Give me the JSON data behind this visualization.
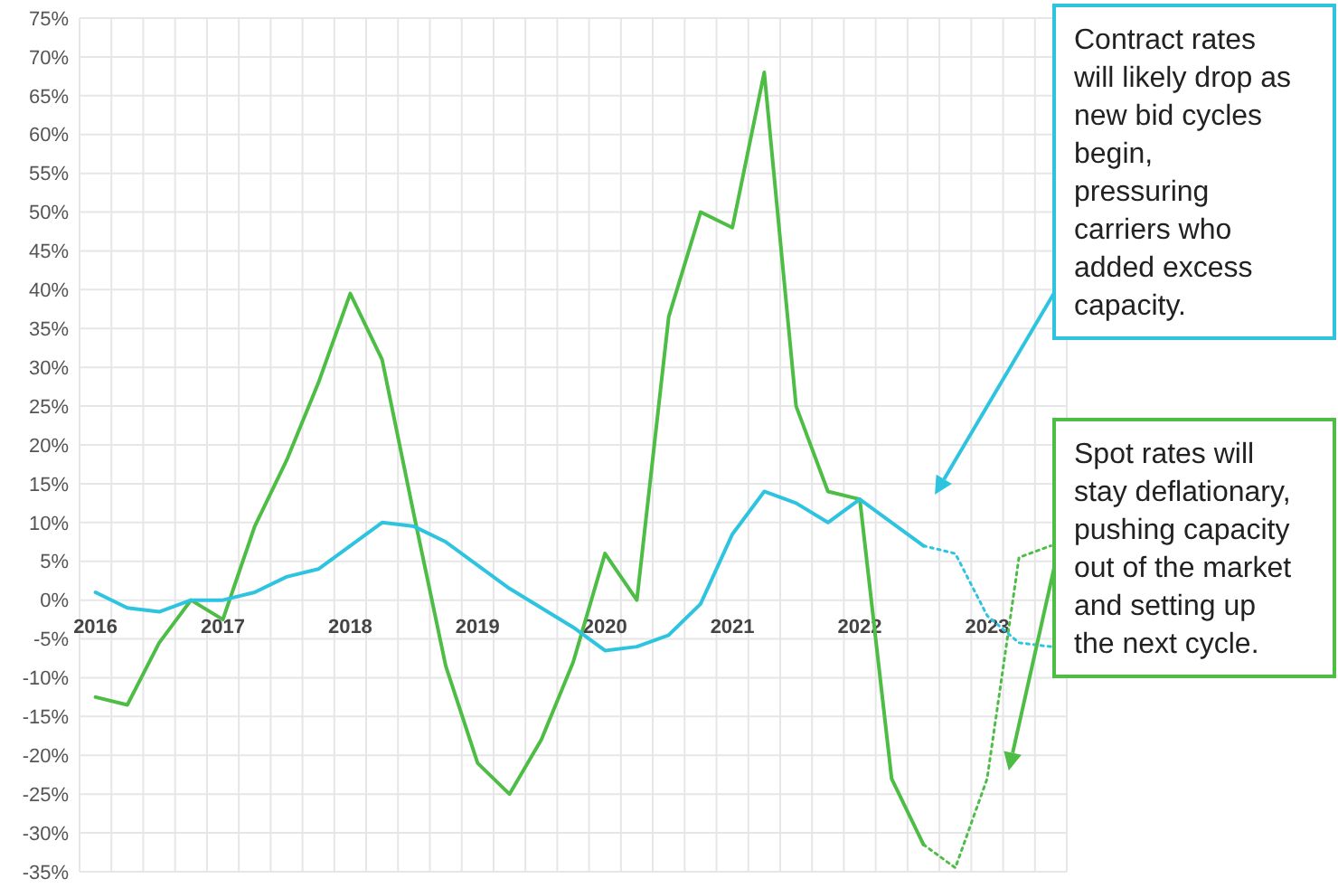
{
  "chart_data": {
    "type": "line",
    "xlim": [
      2015.875,
      2023.625
    ],
    "xticks": [
      2016,
      2017,
      2018,
      2019,
      2020,
      2021,
      2022,
      2023,
      {
        "value": 2015.875,
        "label": null
      },
      {
        "value": 2016.125,
        "label": null
      },
      {
        "value": 2016.375,
        "label": null
      },
      {
        "value": 2016.625,
        "label": null
      },
      {
        "value": 2016.875,
        "label": null
      },
      {
        "value": 2017.125,
        "label": null
      },
      {
        "value": 2017.375,
        "label": null
      },
      {
        "value": 2017.625,
        "label": null
      },
      {
        "value": 2017.875,
        "label": null
      },
      {
        "value": 2018.125,
        "label": null
      },
      {
        "value": 2018.375,
        "label": null
      },
      {
        "value": 2018.625,
        "label": null
      },
      {
        "value": 2018.875,
        "label": null
      },
      {
        "value": 2019.125,
        "label": null
      },
      {
        "value": 2019.375,
        "label": null
      },
      {
        "value": 2019.625,
        "label": null
      },
      {
        "value": 2019.875,
        "label": null
      },
      {
        "value": 2020.125,
        "label": null
      },
      {
        "value": 2020.375,
        "label": null
      },
      {
        "value": 2020.625,
        "label": null
      },
      {
        "value": 2020.875,
        "label": null
      },
      {
        "value": 2021.125,
        "label": null
      },
      {
        "value": 2021.375,
        "label": null
      },
      {
        "value": 2021.625,
        "label": null
      },
      {
        "value": 2021.875,
        "label": null
      },
      {
        "value": 2022.125,
        "label": null
      },
      {
        "value": 2022.375,
        "label": null
      },
      {
        "value": 2022.625,
        "label": null
      },
      {
        "value": 2022.875,
        "label": null
      },
      {
        "value": 2023.125,
        "label": null
      },
      {
        "value": 2023.375,
        "label": null
      },
      {
        "value": 2023.625,
        "label": null
      }
    ],
    "ylim": [
      -35,
      75
    ],
    "yticks": [
      {
        "value": 75,
        "label": "75%"
      },
      {
        "value": 70,
        "label": "70%"
      },
      {
        "value": 65,
        "label": "65%"
      },
      {
        "value": 60,
        "label": "60%"
      },
      {
        "value": 55,
        "label": "55%"
      },
      {
        "value": 50,
        "label": "50%"
      },
      {
        "value": 45,
        "label": "45%"
      },
      {
        "value": 40,
        "label": "40%"
      },
      {
        "value": 35,
        "label": "35%"
      },
      {
        "value": 30,
        "label": "30%"
      },
      {
        "value": 25,
        "label": "25%"
      },
      {
        "value": 20,
        "label": "20%"
      },
      {
        "value": 15,
        "label": "15%"
      },
      {
        "value": 10,
        "label": "10%"
      },
      {
        "value": 5,
        "label": "5%"
      },
      {
        "value": 0,
        "label": "0%"
      },
      {
        "value": -5,
        "label": "-5%"
      },
      {
        "value": -10,
        "label": "-10%"
      },
      {
        "value": -15,
        "label": "-15%"
      },
      {
        "value": -20,
        "label": "-20%"
      },
      {
        "value": -25,
        "label": "-25%"
      },
      {
        "value": -30,
        "label": "-30%"
      },
      {
        "value": -35,
        "label": "-35%"
      }
    ],
    "grid": true,
    "series": [
      {
        "color": "#4dbd45",
        "line_style": "solid",
        "x": [
          2016,
          2016.25,
          2016.5,
          2016.75,
          2017,
          2017.25,
          2017.5,
          2017.75,
          2018,
          2018.25,
          2018.5,
          2018.75,
          2019,
          2019.25,
          2019.5,
          2019.75,
          2020,
          2020.25,
          2020.5,
          2020.75,
          2021,
          2021.25,
          2021.5,
          2021.75,
          2022,
          2022.25,
          2022.5
        ],
        "values": [
          -12.5,
          -13.5,
          -5.5,
          0,
          -2.5,
          9.5,
          18,
          28,
          39.5,
          31,
          11,
          -8.5,
          -21,
          -25,
          -18,
          -8,
          6,
          0,
          36.5,
          50,
          48,
          68,
          25,
          14,
          13,
          -23,
          -31.5
        ]
      },
      {
        "color": "#4dbd45",
        "line_style": "dotted",
        "x": [
          2022.5,
          2022.75,
          2023,
          2023.25,
          2023.5
        ],
        "values": [
          -31.5,
          -34.5,
          -23,
          5.5,
          7
        ]
      },
      {
        "color": "#2ec4e0",
        "line_style": "solid",
        "x": [
          2016,
          2016.25,
          2016.5,
          2016.75,
          2017,
          2017.25,
          2017.5,
          2017.75,
          2018,
          2018.25,
          2018.5,
          2018.75,
          2019,
          2019.25,
          2019.5,
          2019.75,
          2020,
          2020.25,
          2020.5,
          2020.75,
          2021,
          2021.25,
          2021.5,
          2021.75,
          2022,
          2022.25,
          2022.5
        ],
        "values": [
          1,
          -1,
          -1.5,
          0,
          0,
          1,
          3,
          4,
          7,
          10,
          9.5,
          7.5,
          4.5,
          1.5,
          -1,
          -3.5,
          -6.5,
          -6,
          -4.5,
          -0.5,
          8.5,
          14,
          12.5,
          10,
          13,
          10,
          7
        ]
      },
      {
        "color": "#2ec4e0",
        "line_style": "dotted",
        "x": [
          2022.5,
          2022.75,
          2023,
          2023.25,
          2023.5
        ],
        "values": [
          7,
          6,
          -2,
          -5.5,
          -6
        ]
      }
    ],
    "annotations": [
      "Contract rates will likely drop as new bid cycles begin, pressuring carriers who added excess capacity.",
      "Spot rates will stay deflationary, pushing capacity out of the market and setting up the next cycle."
    ]
  }
}
